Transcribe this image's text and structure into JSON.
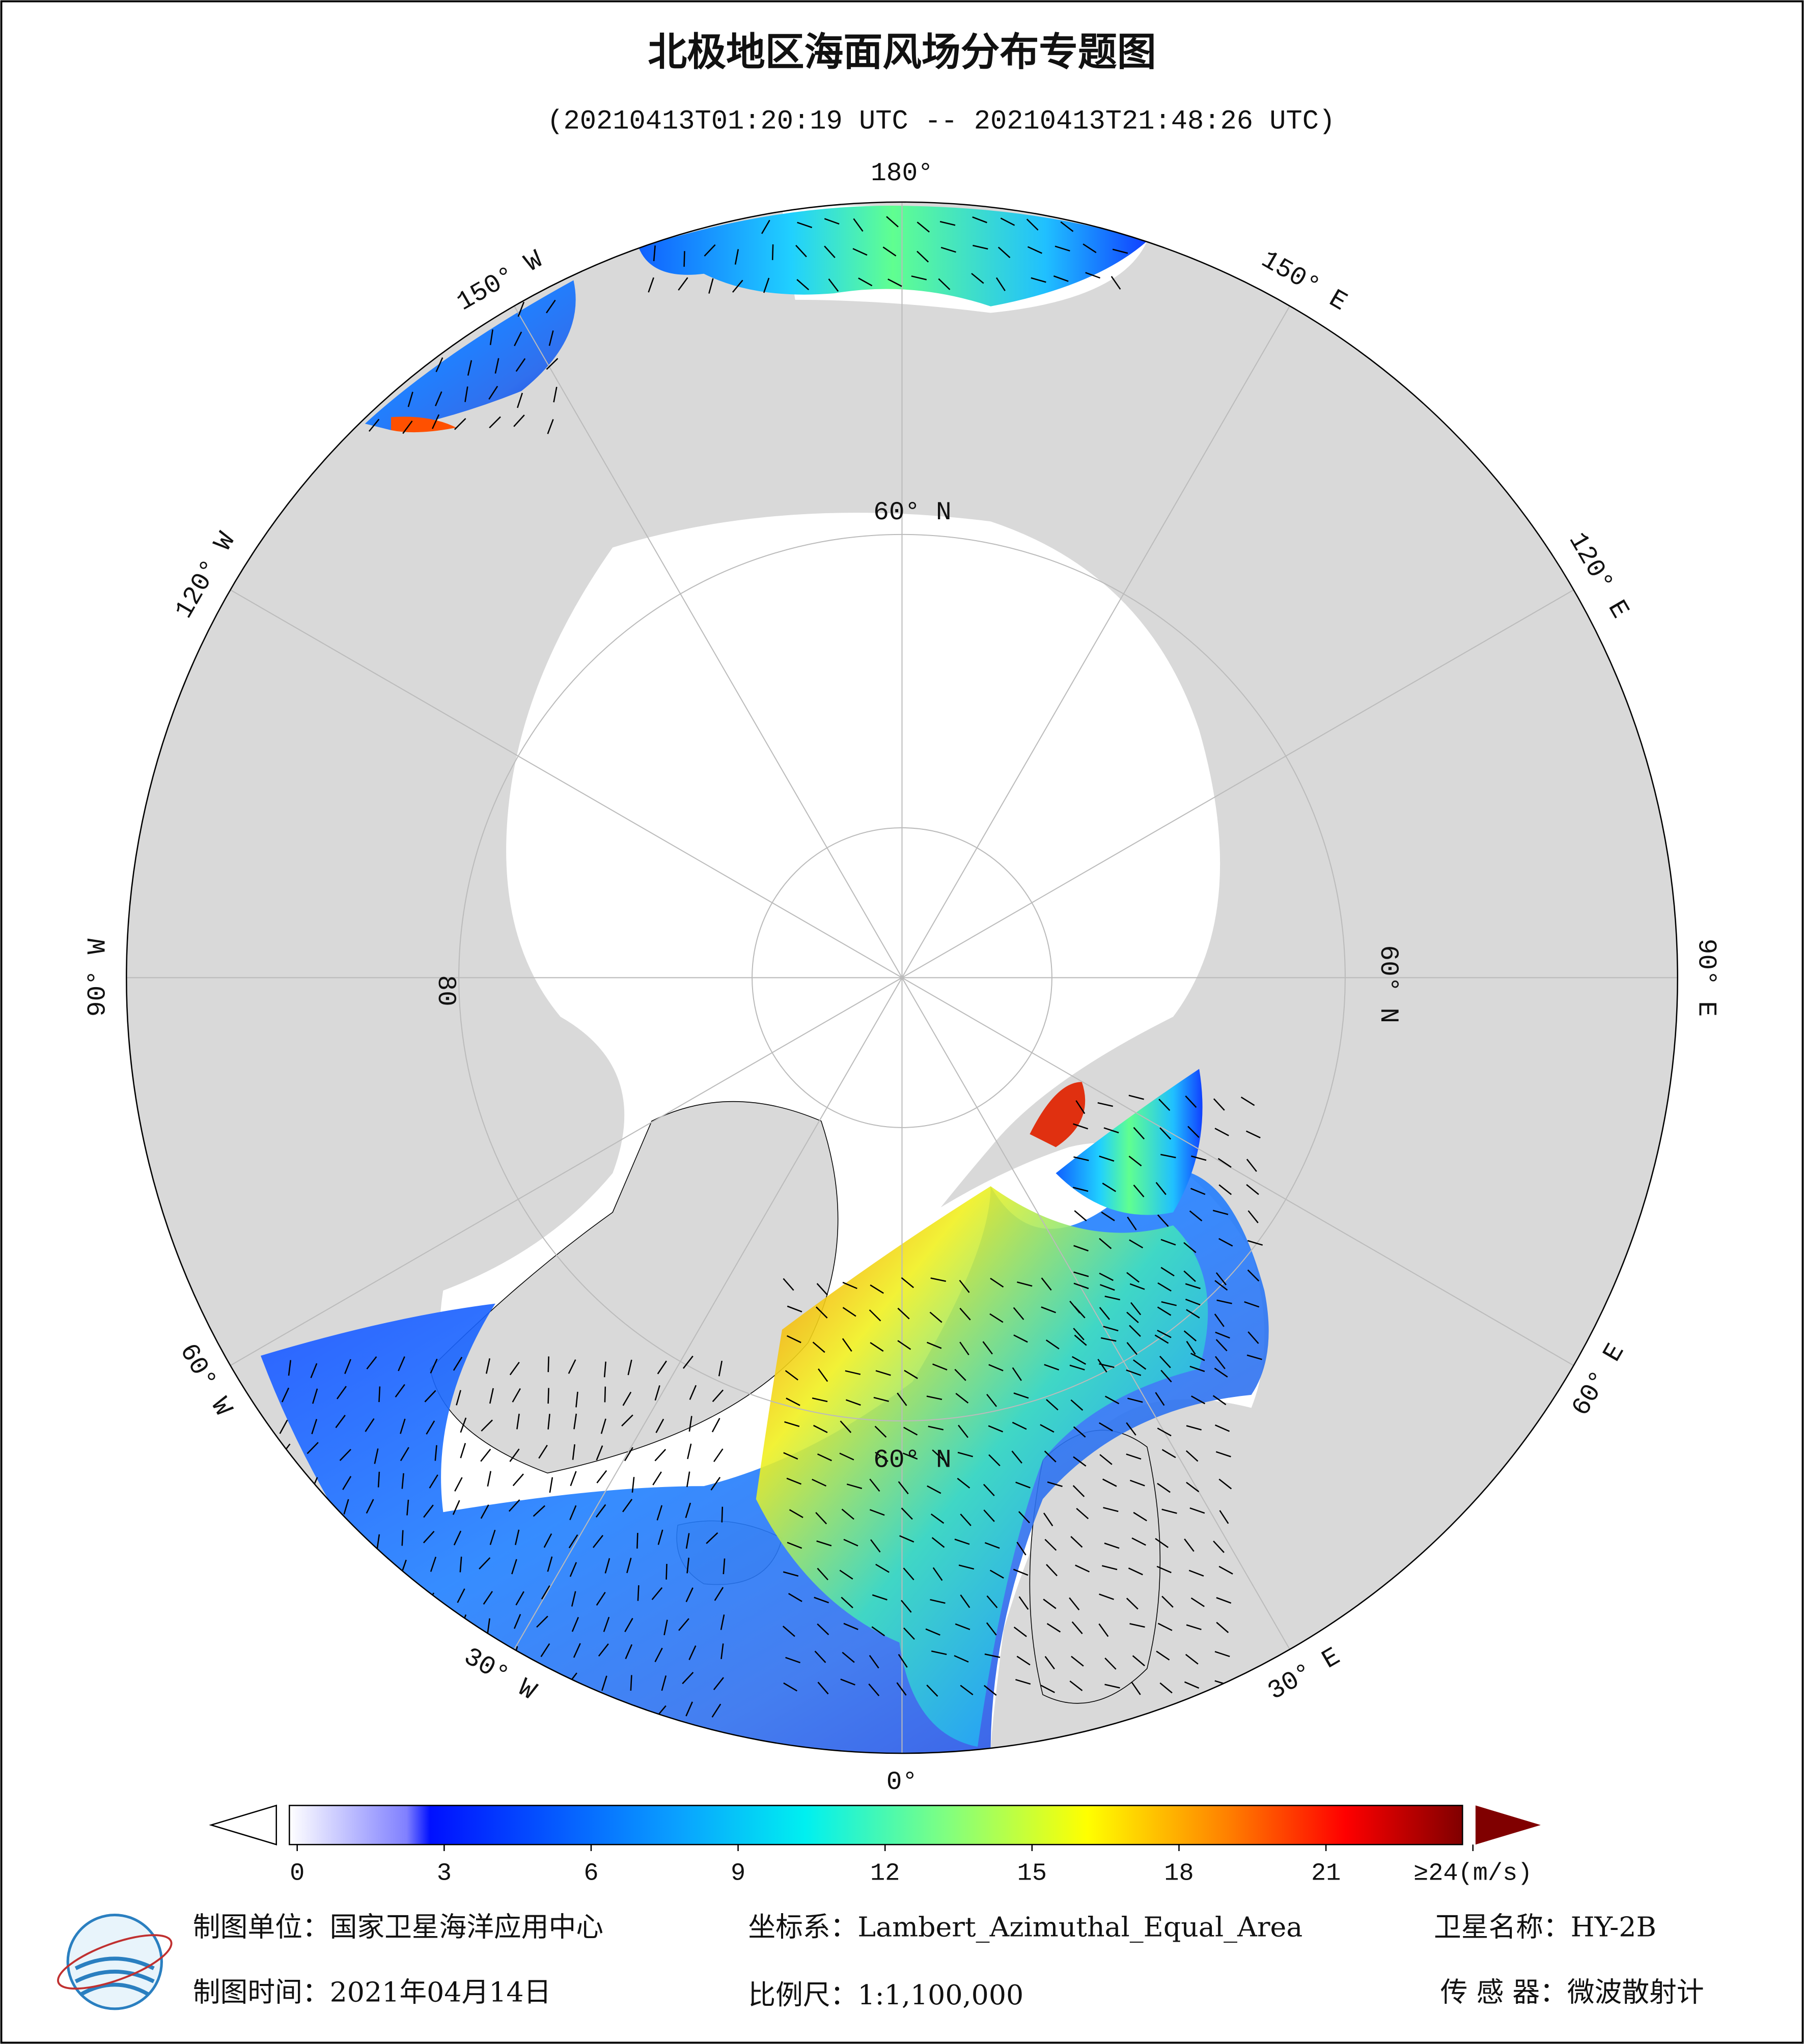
{
  "header": {
    "title": "北极地区海面风场分布专题图",
    "subtitle": "(20210413T01:20:19 UTC -- 20210413T21:48:26 UTC)"
  },
  "map": {
    "lon_labels": [
      "180°",
      "150° E",
      "120° E",
      "90° E",
      "60° E",
      "30° E",
      "0°",
      "30° W",
      "60° W",
      "90° W",
      "120° W",
      "150° W"
    ],
    "lat_labels": [
      "60° N",
      "60° N",
      "60° N",
      "80"
    ]
  },
  "colorbar": {
    "ticks": [
      0,
      3,
      6,
      9,
      12,
      15,
      18,
      21,
      {
        "value": 24,
        "label": "≥24(m/s)"
      }
    ],
    "range": [
      0,
      24
    ]
  },
  "footer": {
    "unit": "制图单位：国家卫星海洋应用中心",
    "crs": "坐标系：Lambert_Azimuthal_Equal_Area",
    "satellite": "卫星名称：HY-2B",
    "date": "制图时间：2021年04月14日",
    "scale": "比例尺：1:1,100,000",
    "sensor": "传 感 器：微波散射计"
  }
}
